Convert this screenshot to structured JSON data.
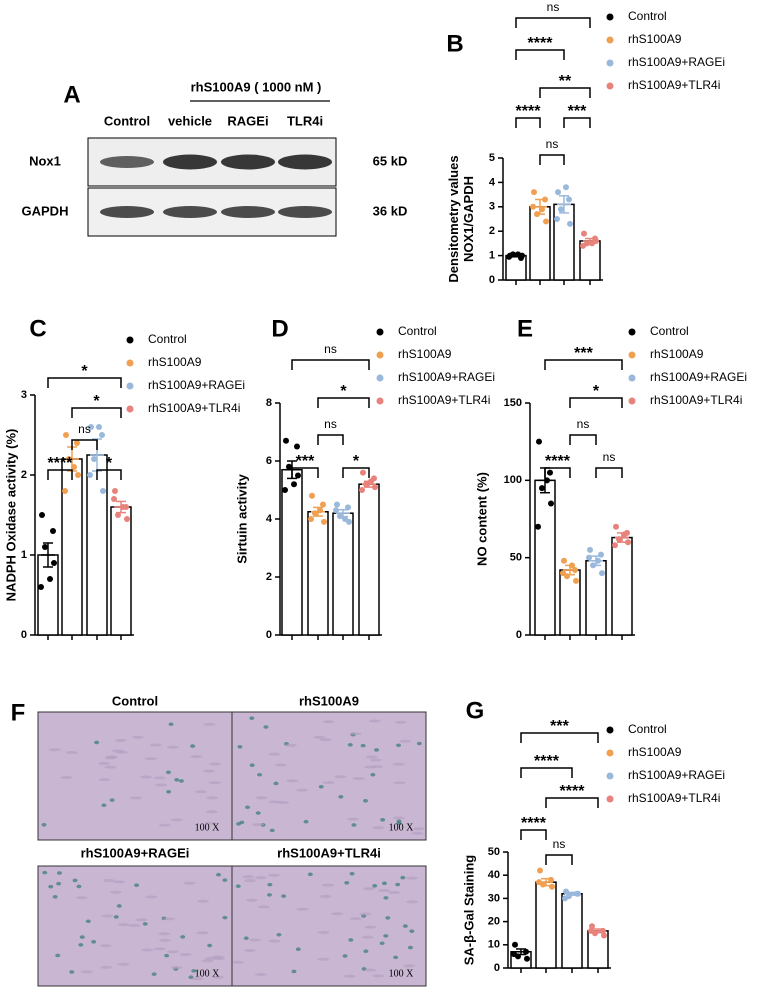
{
  "blot": {
    "panel": "A",
    "treatment": "rhS100A9 ( 1000 nM )",
    "lanes": [
      "Control",
      "vehicle",
      "RAGEi",
      "TLR4i"
    ],
    "rows": [
      {
        "label": "Nox1",
        "size": "65 kD"
      },
      {
        "label": "GAPDH",
        "size": "36 kD"
      }
    ]
  },
  "micrographs": {
    "panel": "F",
    "images": [
      {
        "title": "Control",
        "magnification": "100 X"
      },
      {
        "title": "rhS100A9",
        "magnification": "100 X"
      },
      {
        "title": "rhS100A9+RAGEi",
        "magnification": "100 X"
      },
      {
        "title": "rhS100A9+TLR4i",
        "magnification": "100 X"
      }
    ]
  },
  "chart_data": [
    {
      "type": "bar",
      "panel": "B",
      "ylabel": [
        "Densitometry values",
        "NOX1/GAPDH"
      ],
      "ylim": [
        0,
        5
      ],
      "yticks": [
        0,
        1,
        2,
        3,
        4,
        5
      ],
      "series": [
        {
          "name": "Control",
          "color": "#000000",
          "values": [
            1.0
          ],
          "errors": [
            0.05
          ],
          "points": [
            1.0,
            0.9,
            1.05,
            1.0,
            0.95,
            1.05
          ]
        },
        {
          "name": "rhS100A9",
          "color": "#f0a050",
          "values": [
            3.0
          ],
          "errors": [
            0.3
          ],
          "points": [
            3.6,
            3.3,
            2.7,
            2.4,
            3.0,
            2.9
          ]
        },
        {
          "name": "rhS100A9+RAGEi",
          "color": "#9ab8dc",
          "values": [
            3.1
          ],
          "errors": [
            0.35
          ],
          "points": [
            3.6,
            3.3,
            2.9,
            2.3,
            2.5,
            3.8
          ]
        },
        {
          "name": "rhS100A9+TLR4i",
          "color": "#e8837c",
          "values": [
            1.6
          ],
          "errors": [
            0.1
          ],
          "points": [
            1.9,
            1.7,
            1.5,
            1.6,
            1.4,
            1.5
          ]
        }
      ],
      "annotations": [
        "ns",
        "****",
        "**",
        "****",
        "***",
        "ns"
      ]
    },
    {
      "type": "bar",
      "panel": "C",
      "ylabel": [
        "NADPH Oxidase activity (%)"
      ],
      "ylim": [
        0,
        3
      ],
      "yticks": [
        0,
        1,
        2,
        3
      ],
      "series": [
        {
          "name": "Control",
          "color": "#000000",
          "values": [
            1.0
          ],
          "errors": [
            0.15
          ],
          "points": [
            1.5,
            1.3,
            1.1,
            0.9,
            0.6,
            0.7
          ]
        },
        {
          "name": "rhS100A9",
          "color": "#f0a050",
          "values": [
            2.2
          ],
          "errors": [
            0.15
          ],
          "points": [
            2.5,
            2.4,
            2.2,
            2.0,
            1.8,
            2.1
          ]
        },
        {
          "name": "rhS100A9+RAGEi",
          "color": "#9ab8dc",
          "values": [
            2.25
          ],
          "errors": [
            0.2
          ],
          "points": [
            2.6,
            2.5,
            2.2,
            1.8,
            2.0,
            2.6
          ]
        },
        {
          "name": "rhS100A9+TLR4i",
          "color": "#e8837c",
          "values": [
            1.6
          ],
          "errors": [
            0.07
          ],
          "points": [
            1.8,
            1.6,
            1.5,
            1.45,
            1.7,
            1.6
          ]
        }
      ],
      "annotations": [
        "*",
        "*",
        "ns",
        "****",
        "*"
      ]
    },
    {
      "type": "bar",
      "panel": "D",
      "ylabel": [
        "Sirtuin activity"
      ],
      "ylim": [
        0,
        8
      ],
      "yticks": [
        0,
        2,
        4,
        6,
        8
      ],
      "series": [
        {
          "name": "Control",
          "color": "#000000",
          "values": [
            5.7
          ],
          "errors": [
            0.3
          ],
          "points": [
            6.7,
            6.5,
            5.8,
            5.5,
            5.0,
            5.2
          ]
        },
        {
          "name": "rhS100A9",
          "color": "#f0a050",
          "values": [
            4.25
          ],
          "errors": [
            0.15
          ],
          "points": [
            4.8,
            4.5,
            4.2,
            3.9,
            4.0,
            4.3
          ]
        },
        {
          "name": "rhS100A9+RAGEi",
          "color": "#9ab8dc",
          "values": [
            4.2
          ],
          "errors": [
            0.12
          ],
          "points": [
            4.5,
            4.4,
            4.1,
            3.9,
            4.3,
            4.0
          ]
        },
        {
          "name": "rhS100A9+TLR4i",
          "color": "#e8837c",
          "values": [
            5.2
          ],
          "errors": [
            0.1
          ],
          "points": [
            5.6,
            5.4,
            5.2,
            5.1,
            5.0,
            5.3
          ]
        }
      ],
      "annotations": [
        "ns",
        "*",
        "ns",
        "***",
        "*"
      ]
    },
    {
      "type": "bar",
      "panel": "E",
      "ylabel": [
        "NO content (%)"
      ],
      "ylim": [
        0,
        150
      ],
      "yticks": [
        0,
        50,
        100,
        150
      ],
      "series": [
        {
          "name": "Control",
          "color": "#000000",
          "values": [
            100
          ],
          "errors": [
            8
          ],
          "points": [
            125,
            105,
            95,
            85,
            70,
            100
          ]
        },
        {
          "name": "rhS100A9",
          "color": "#f0a050",
          "values": [
            42
          ],
          "errors": [
            3
          ],
          "points": [
            48,
            42,
            38,
            35,
            40,
            45
          ]
        },
        {
          "name": "rhS100A9+RAGEi",
          "color": "#9ab8dc",
          "values": [
            48
          ],
          "errors": [
            3
          ],
          "points": [
            55,
            52,
            45,
            40,
            50,
            48
          ]
        },
        {
          "name": "rhS100A9+TLR4i",
          "color": "#e8837c",
          "values": [
            63
          ],
          "errors": [
            3
          ],
          "points": [
            70,
            66,
            62,
            60,
            58,
            65
          ]
        }
      ],
      "annotations": [
        "***",
        "*",
        "ns",
        "****",
        "ns"
      ]
    },
    {
      "type": "bar",
      "panel": "G",
      "ylabel": [
        "SA-β-Gal Staining"
      ],
      "ylim": [
        0,
        50
      ],
      "yticks": [
        0,
        10,
        20,
        30,
        40,
        50
      ],
      "series": [
        {
          "name": "Control",
          "color": "#000000",
          "values": [
            7
          ],
          "errors": [
            1.2
          ],
          "points": [
            10,
            7,
            5,
            4,
            6
          ]
        },
        {
          "name": "rhS100A9",
          "color": "#f0a050",
          "values": [
            37
          ],
          "errors": [
            1.5
          ],
          "points": [
            42,
            38,
            36,
            35,
            37
          ]
        },
        {
          "name": "rhS100A9+RAGEi",
          "color": "#9ab8dc",
          "values": [
            32
          ],
          "errors": [
            0.6
          ],
          "points": [
            33,
            32,
            31,
            32,
            30
          ]
        },
        {
          "name": "rhS100A9+TLR4i",
          "color": "#e8837c",
          "values": [
            16
          ],
          "errors": [
            0.8
          ],
          "points": [
            18,
            16,
            15,
            14,
            16
          ]
        }
      ],
      "annotations": [
        "***",
        "****",
        "****",
        "****",
        "ns"
      ]
    }
  ]
}
